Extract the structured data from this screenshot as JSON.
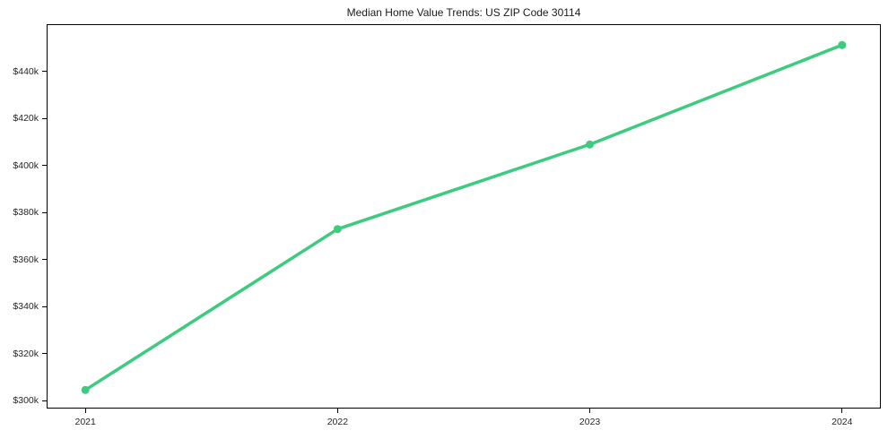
{
  "chart_data": {
    "type": "line",
    "title": "Median Home Value Trends: US ZIP Code 30114",
    "xlabel": "",
    "ylabel": "",
    "x": [
      2021,
      2022,
      2023,
      2024
    ],
    "y": [
      304500,
      373000,
      409000,
      451300
    ],
    "y_unit": "USD",
    "x_ticks": [
      {
        "v": 2021,
        "label": "2021"
      },
      {
        "v": 2022,
        "label": "2022"
      },
      {
        "v": 2023,
        "label": "2023"
      },
      {
        "v": 2024,
        "label": "2024"
      }
    ],
    "y_ticks": [
      {
        "v": 300000,
        "label": "$300k"
      },
      {
        "v": 320000,
        "label": "$320k"
      },
      {
        "v": 340000,
        "label": "$340k"
      },
      {
        "v": 360000,
        "label": "$360k"
      },
      {
        "v": 380000,
        "label": "$380k"
      },
      {
        "v": 400000,
        "label": "$400k"
      },
      {
        "v": 420000,
        "label": "$420k"
      },
      {
        "v": 440000,
        "label": "$440k"
      }
    ],
    "xlim": [
      2020.85,
      2024.15
    ],
    "ylim": [
      297000,
      459800
    ],
    "grid": false,
    "legend": false,
    "line_color": "#3dcb7e",
    "marker": "circle",
    "text_color": "#262626",
    "spine_color": "#000000",
    "background": "#ffffff"
  }
}
